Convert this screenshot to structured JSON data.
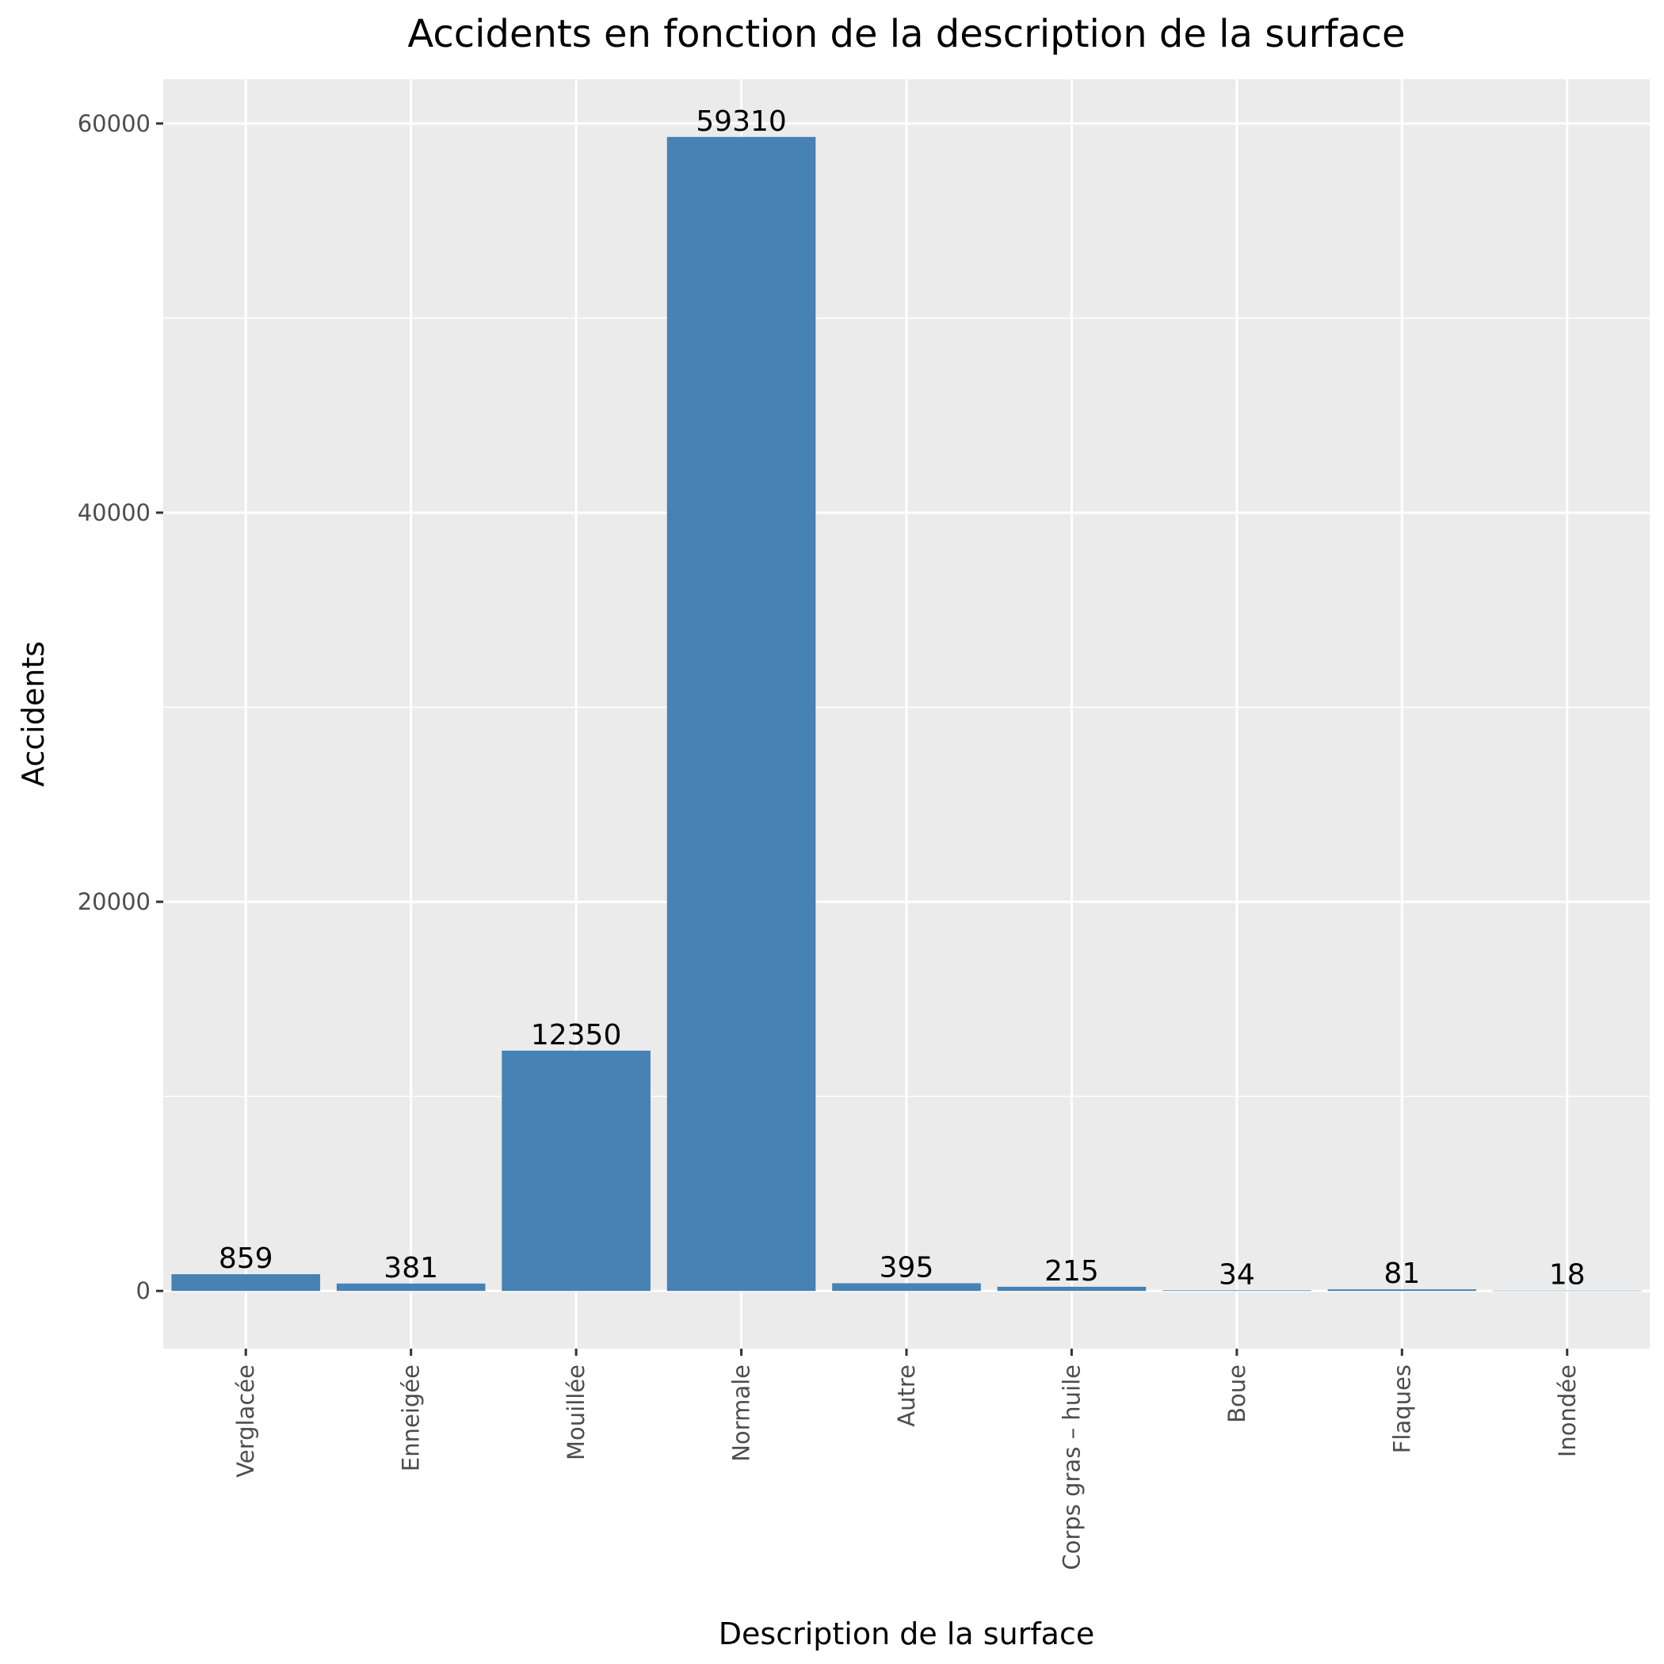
{
  "chart_data": {
    "type": "bar",
    "title": "Accidents en fonction de la description de la surface",
    "xlabel": "Description de la surface",
    "ylabel": "Accidents",
    "categories": [
      "Verglacée",
      "Enneigée",
      "Mouillée",
      "Normale",
      "Autre",
      "Corps gras – huile",
      "Boue",
      "Flaques",
      "Inondée"
    ],
    "values": [
      859,
      381,
      12350,
      59310,
      395,
      215,
      34,
      81,
      18
    ],
    "data_labels": [
      "859",
      "381",
      "12350",
      "59310",
      "395",
      "215",
      "34",
      "81",
      "18"
    ],
    "y_ticks": [
      0,
      20000,
      40000,
      60000
    ],
    "y_tick_labels": [
      "0",
      "20000",
      "40000",
      "60000"
    ],
    "ylim": [
      -2965.5,
      62275.5
    ],
    "grid": true,
    "legend": "none",
    "colors": {
      "bar": "#4682B4",
      "panel_background": "#EBEBEB",
      "grid": "#FFFFFF",
      "tick": "#333333",
      "tick_label": "#4D4D4D"
    }
  }
}
